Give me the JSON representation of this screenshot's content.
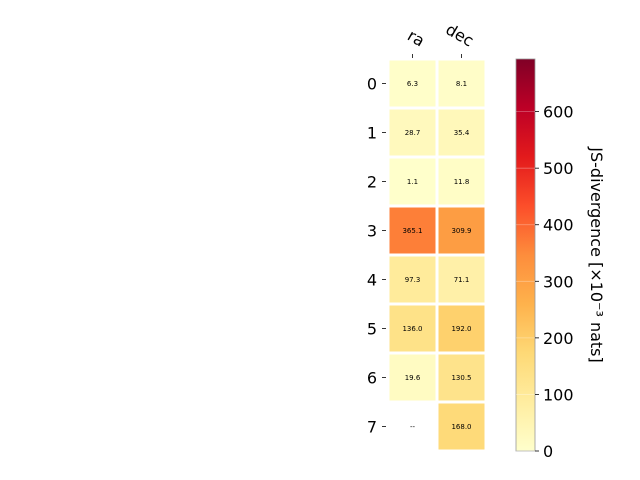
{
  "chart_data": {
    "type": "heatmap",
    "columns": [
      "ra",
      "dec"
    ],
    "rows": [
      "0",
      "1",
      "2",
      "3",
      "4",
      "5",
      "6",
      "7"
    ],
    "values": [
      [
        6.3,
        8.1
      ],
      [
        28.7,
        35.4
      ],
      [
        1.1,
        11.8
      ],
      [
        365.1,
        309.9
      ],
      [
        97.3,
        71.1
      ],
      [
        136.0,
        192.0
      ],
      [
        19.6,
        130.5
      ],
      [
        null,
        168.0
      ]
    ],
    "cell_labels": [
      [
        "6.3",
        "8.1"
      ],
      [
        "28.7",
        "35.4"
      ],
      [
        "1.1",
        "11.8"
      ],
      [
        "365.1",
        "309.9"
      ],
      [
        "97.3",
        "71.1"
      ],
      [
        "136.0",
        "192.0"
      ],
      [
        "19.6",
        "130.5"
      ],
      [
        "--",
        "168.0"
      ]
    ],
    "colorbar": {
      "label": "JS-divergence [×10⁻³ nats]",
      "range": [
        0,
        693
      ],
      "ticks": [
        0,
        100,
        200,
        300,
        400,
        500,
        600
      ],
      "colormap": "YlOrRd"
    }
  }
}
